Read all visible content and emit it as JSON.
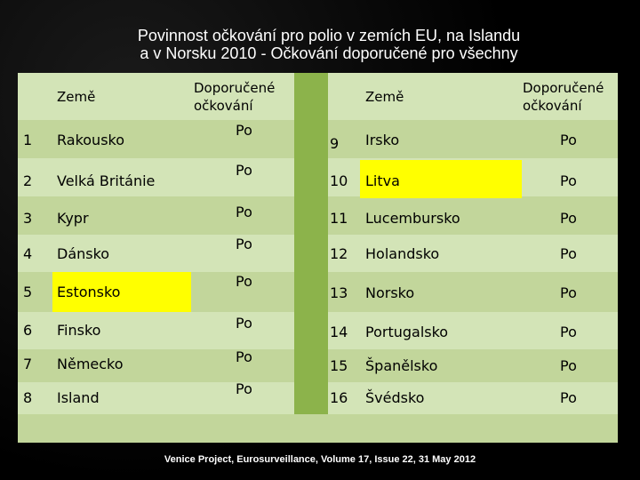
{
  "title": {
    "line1": "Povinnost očkování pro polio v zemích EU, na Islandu",
    "line2": "a v Norsku  2010 - Očkování doporučené pro všechny"
  },
  "header": {
    "left_country": "Země",
    "left_recommended_line1": "Doporučené",
    "left_recommended_line2": "očkování",
    "right_country": "Země",
    "right_recommended_line1": "Doporučené",
    "right_recommended_line2": "očkování"
  },
  "left_rows": [
    {
      "num": "1",
      "country": "Rakousko",
      "value": "Po"
    },
    {
      "num": "2",
      "country": "Velká Británie",
      "value": "Po"
    },
    {
      "num": "3",
      "country": "Kypr",
      "value": "Po"
    },
    {
      "num": "4",
      "country": "Dánsko",
      "value": "Po"
    },
    {
      "num": "5",
      "country": "Estonsko",
      "value": "Po"
    },
    {
      "num": "6",
      "country": "Finsko",
      "value": "Po"
    },
    {
      "num": "7",
      "country": "Německo",
      "value": "Po"
    },
    {
      "num": "8",
      "country": "Island",
      "value": "Po"
    }
  ],
  "right_rows": [
    {
      "num": "9",
      "country": "Irsko",
      "value": "Po"
    },
    {
      "num": "10",
      "country": "Litva",
      "value": "Po"
    },
    {
      "num": "11",
      "country": "Lucembursko",
      "value": "Po"
    },
    {
      "num": "12",
      "country": "Holandsko",
      "value": "Po"
    },
    {
      "num": "13",
      "country": "Norsko",
      "value": "Po"
    },
    {
      "num": "14",
      "country": "Portugalsko",
      "value": "Po"
    },
    {
      "num": "15",
      "country": "Španělsko",
      "value": "Po"
    },
    {
      "num": "16",
      "country": "Švédsko",
      "value": "Po"
    }
  ],
  "source": "Venice Project, Eurosurveillance, Volume 17, Issue 22, 31 May 2012",
  "colors": {
    "background": "#000000",
    "table_light": "#d3e4b7",
    "table_dark": "#c2d69b",
    "divider": "#8cb34b",
    "highlight": "#ffff00"
  }
}
